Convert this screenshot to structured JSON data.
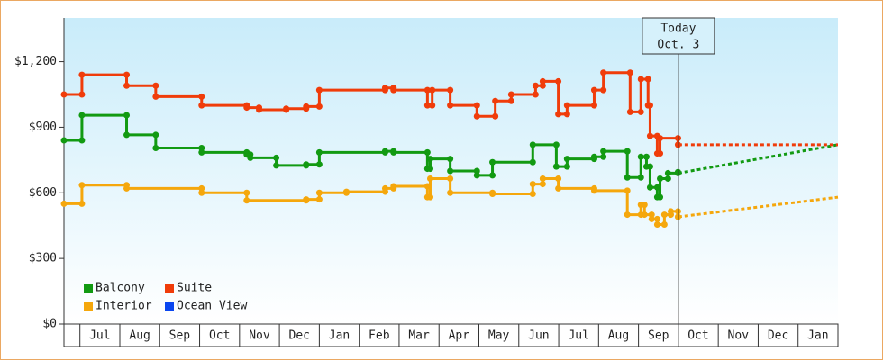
{
  "chart_data": {
    "type": "step-line",
    "categories": [
      "Jul",
      "Aug",
      "Sep",
      "Oct",
      "Nov",
      "Dec",
      "Jan",
      "Feb",
      "Mar",
      "Apr",
      "May",
      "Jun",
      "Jul",
      "Aug",
      "Sep",
      "Oct",
      "Nov",
      "Dec",
      "Jan"
    ],
    "xlim": [
      -0.4,
      19
    ],
    "ylim": [
      0,
      1400
    ],
    "yticks": [
      {
        "value": 0,
        "label": "$0"
      },
      {
        "value": 300,
        "label": "$300"
      },
      {
        "value": 600,
        "label": "$600"
      },
      {
        "value": 900,
        "label": "$900"
      },
      {
        "value": 1200,
        "label": "$1,200"
      }
    ],
    "today": {
      "x": 15,
      "label": [
        "Today",
        "Oct. 3"
      ]
    },
    "series": [
      {
        "name": "Balcony",
        "color": "#129a12",
        "x": [
          -0.4,
          0.05,
          1.17,
          1.9,
          3.05,
          4.18,
          4.27,
          4.92,
          5.67,
          6.0,
          7.65,
          7.86,
          8.71,
          8.78,
          9.28,
          9.95,
          10.34,
          11.35,
          11.94,
          12.21,
          12.89,
          13.12,
          13.72,
          14.06,
          14.2,
          14.29,
          14.47,
          14.54,
          14.74,
          14.99
        ],
        "values": [
          840,
          955,
          865,
          805,
          785,
          775,
          760,
          725,
          730,
          785,
          790,
          785,
          710,
          755,
          700,
          680,
          740,
          820,
          720,
          755,
          765,
          790,
          670,
          765,
          720,
          625,
          580,
          665,
          690,
          695
        ],
        "forecast_x": [
          15,
          19
        ],
        "forecast_values": [
          690,
          820
        ]
      },
      {
        "name": "Suite",
        "color": "#f03c0a",
        "x": [
          -0.4,
          0.05,
          1.17,
          1.9,
          3.05,
          4.18,
          4.49,
          5.17,
          5.67,
          6.0,
          7.65,
          7.86,
          8.71,
          8.83,
          9.28,
          9.95,
          10.41,
          10.81,
          11.42,
          11.6,
          11.99,
          12.21,
          12.89,
          13.12,
          13.79,
          14.06,
          14.24,
          14.29,
          14.47,
          14.54,
          14.99
        ],
        "values": [
          1050,
          1140,
          1090,
          1040,
          1000,
          990,
          980,
          985,
          995,
          1070,
          1080,
          1070,
          1000,
          1070,
          1000,
          950,
          1020,
          1050,
          1090,
          1110,
          960,
          1000,
          1070,
          1150,
          970,
          1120,
          1000,
          860,
          780,
          850,
          820
        ],
        "forecast_x": [
          15,
          19
        ],
        "forecast_values": [
          820,
          820
        ]
      },
      {
        "name": "Interior",
        "color": "#f5a70c",
        "x": [
          -0.4,
          0.05,
          1.17,
          3.05,
          4.18,
          5.67,
          6.0,
          6.68,
          7.65,
          7.86,
          8.71,
          8.78,
          9.28,
          10.34,
          11.35,
          11.6,
          11.99,
          12.89,
          13.72,
          14.06,
          14.15,
          14.33,
          14.47,
          14.65,
          14.81,
          14.99
        ],
        "values": [
          550,
          635,
          620,
          600,
          565,
          570,
          600,
          605,
          620,
          630,
          580,
          665,
          600,
          595,
          640,
          665,
          620,
          610,
          500,
          545,
          500,
          480,
          455,
          500,
          515,
          490
        ],
        "forecast_x": [
          15,
          19
        ],
        "forecast_values": [
          490,
          580
        ]
      },
      {
        "name": "Ocean View",
        "color": "#0a46f0",
        "x": [],
        "values": []
      }
    ]
  }
}
